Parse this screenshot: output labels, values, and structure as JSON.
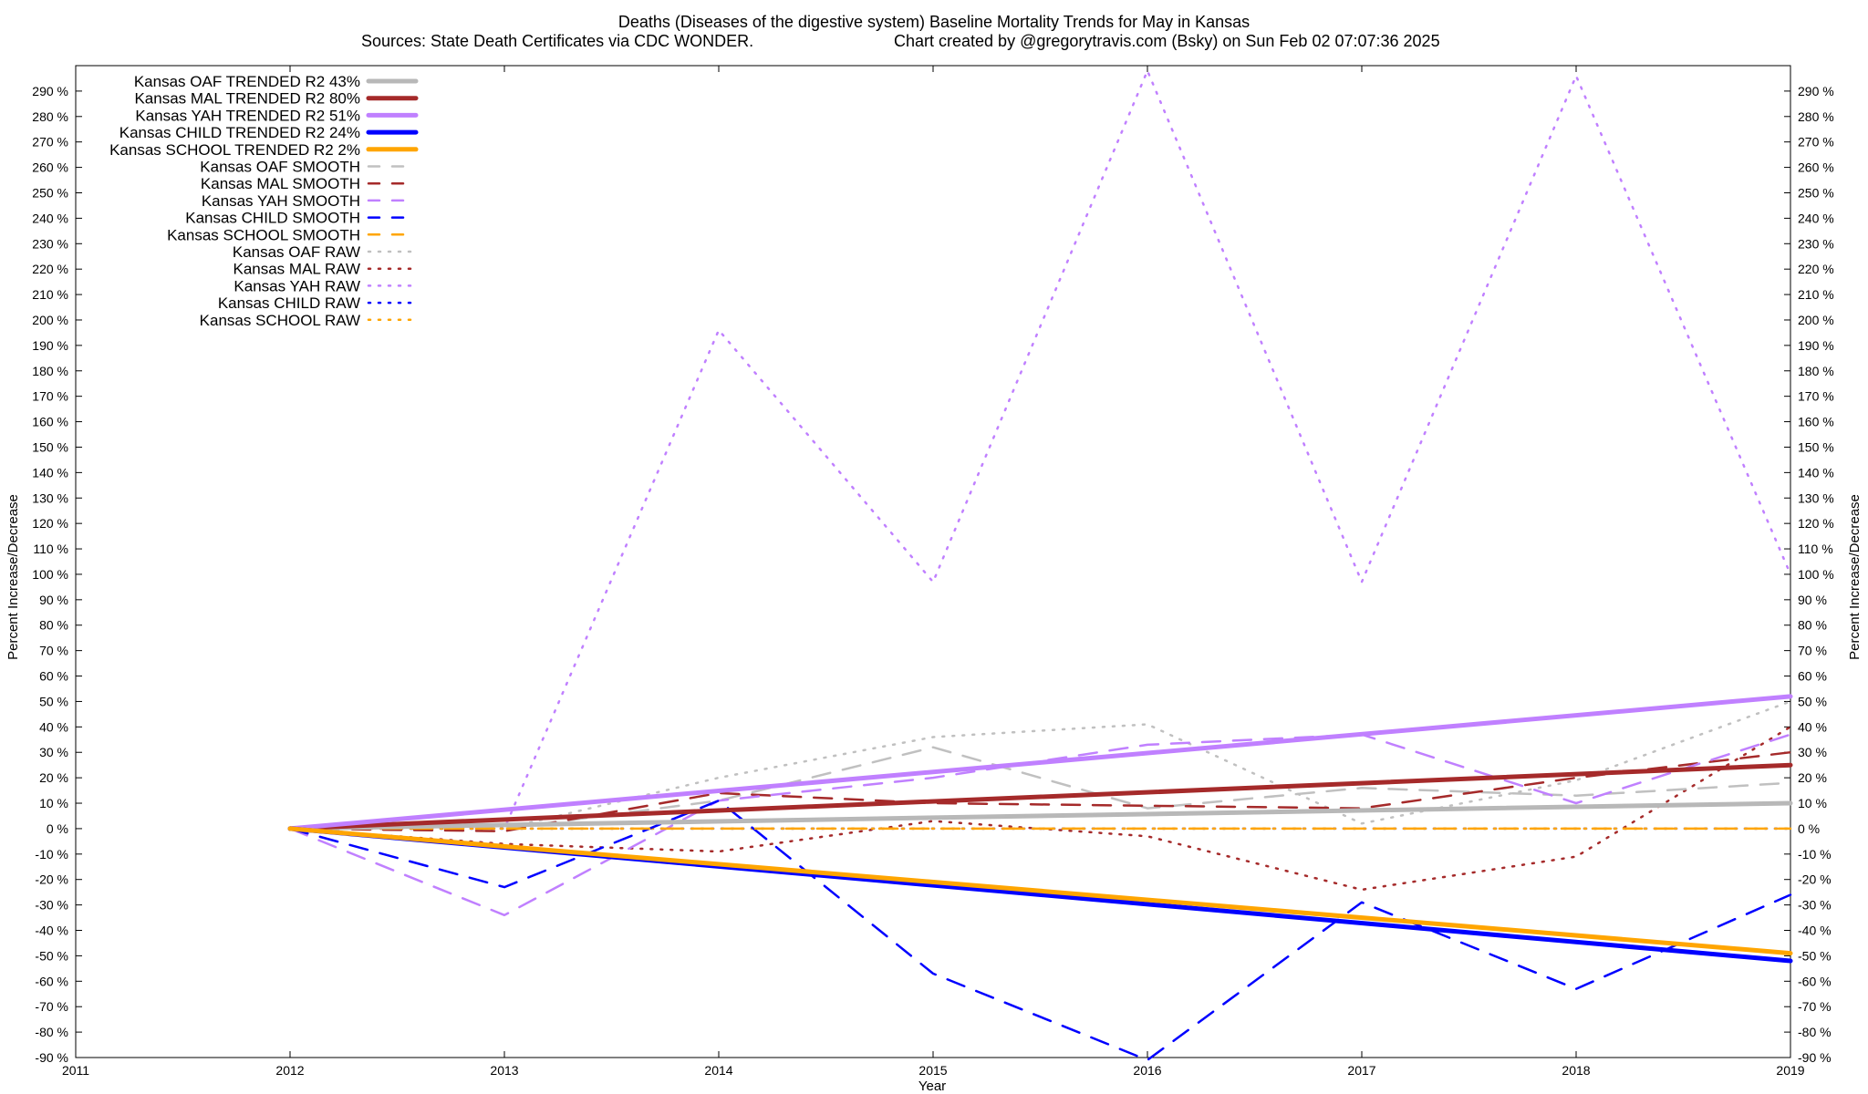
{
  "chart_data": {
    "type": "line",
    "title": "Deaths (Diseases of the digestive system)  Baseline Mortality Trends for May in Kansas",
    "subtitle_left": "Sources: State Death Certificates via CDC WONDER.",
    "subtitle_right": "Chart created by @gregorytravis.com (Bsky) on Sun Feb 02 07:07:36 2025",
    "xlabel": "Year",
    "ylabel": "Percent Increase/Decrease",
    "ylabel_right": "Percent Increase/Decrease",
    "xlim": [
      2011,
      2019
    ],
    "ylim": [
      -90,
      300
    ],
    "x_ticks": [
      2011,
      2012,
      2013,
      2014,
      2015,
      2016,
      2017,
      2018,
      2019
    ],
    "x_tick_labels": [
      "2011",
      "2012",
      "2013",
      "2014",
      "2015",
      "2016",
      "2017",
      "2018",
      "2019"
    ],
    "y_ticks": [
      -90,
      -80,
      -70,
      -60,
      -50,
      -40,
      -30,
      -20,
      -10,
      0,
      10,
      20,
      30,
      40,
      50,
      60,
      70,
      80,
      90,
      100,
      110,
      120,
      130,
      140,
      150,
      160,
      170,
      180,
      190,
      200,
      210,
      220,
      230,
      240,
      250,
      260,
      270,
      280,
      290
    ],
    "y_tick_labels": [
      "-90 %",
      "-80 %",
      "-70 %",
      "-60 %",
      "-50 %",
      "-40 %",
      "-30 %",
      "-20 %",
      "-10 %",
      "0 %",
      "10 %",
      "20 %",
      "30 %",
      "40 %",
      "50 %",
      "60 %",
      "70 %",
      "80 %",
      "90 %",
      "100 %",
      "110 %",
      "120 %",
      "130 %",
      "140 %",
      "150 %",
      "160 %",
      "170 %",
      "180 %",
      "190 %",
      "200 %",
      "210 %",
      "220 %",
      "230 %",
      "240 %",
      "250 %",
      "260 %",
      "270 %",
      "280 %",
      "290 %"
    ],
    "grid": false,
    "legend_position": "top-left",
    "series": [
      {
        "name": "Kansas OAF TRENDED R2  43%",
        "style": "trend",
        "color": "#b8b8b8",
        "x": [
          2012,
          2019
        ],
        "y": [
          0,
          10
        ]
      },
      {
        "name": "Kansas MAL TRENDED R2  80%",
        "style": "trend",
        "color": "#a52a2a",
        "x": [
          2012,
          2019
        ],
        "y": [
          0,
          25
        ]
      },
      {
        "name": "Kansas YAH TRENDED R2  51%",
        "style": "trend",
        "color": "#c080ff",
        "x": [
          2012,
          2019
        ],
        "y": [
          0,
          52
        ]
      },
      {
        "name": "Kansas CHILD TRENDED R2  24%",
        "style": "trend",
        "color": "#0000ff",
        "x": [
          2012,
          2019
        ],
        "y": [
          0,
          -52
        ]
      },
      {
        "name": "Kansas SCHOOL TRENDED R2   2%",
        "style": "trend",
        "color": "#ffa500",
        "x": [
          2012,
          2019
        ],
        "y": [
          0,
          -49
        ]
      },
      {
        "name": "Kansas OAF SMOOTH",
        "style": "smooth",
        "color": "#c0c0c0",
        "x": [
          2012,
          2013,
          2014,
          2015,
          2016,
          2017,
          2018,
          2019
        ],
        "y": [
          0,
          0,
          11,
          32,
          8,
          16,
          13,
          18
        ]
      },
      {
        "name": "Kansas MAL SMOOTH",
        "style": "smooth",
        "color": "#a52a2a",
        "x": [
          2012,
          2013,
          2014,
          2015,
          2016,
          2017,
          2018,
          2019
        ],
        "y": [
          0,
          -1,
          14,
          10,
          9,
          8,
          20,
          30
        ]
      },
      {
        "name": "Kansas YAH SMOOTH",
        "style": "smooth",
        "color": "#c080ff",
        "x": [
          2012,
          2013,
          2014,
          2015,
          2016,
          2017,
          2018,
          2019
        ],
        "y": [
          0,
          -34,
          11,
          20,
          33,
          37,
          10,
          37
        ]
      },
      {
        "name": "Kansas CHILD SMOOTH",
        "style": "smooth",
        "color": "#0000ff",
        "x": [
          2012,
          2013,
          2014,
          2015,
          2016,
          2017,
          2018,
          2019
        ],
        "y": [
          0,
          -23,
          11,
          -57,
          -91,
          -29,
          -63,
          -26
        ]
      },
      {
        "name": "Kansas SCHOOL SMOOTH",
        "style": "smooth",
        "color": "#ffa500",
        "x": [
          2012,
          2013,
          2014,
          2015,
          2016,
          2017,
          2018,
          2019
        ],
        "y": [
          0,
          0,
          0,
          0,
          0,
          0,
          0,
          0
        ]
      },
      {
        "name": "Kansas OAF RAW",
        "style": "raw",
        "color": "#c0c0c0",
        "x": [
          2012,
          2013,
          2014,
          2015,
          2016,
          2017,
          2018,
          2019
        ],
        "y": [
          0,
          0,
          20,
          36,
          41,
          2,
          19,
          50
        ]
      },
      {
        "name": "Kansas MAL RAW",
        "style": "raw",
        "color": "#a52a2a",
        "x": [
          2012,
          2013,
          2014,
          2015,
          2016,
          2017,
          2018,
          2019
        ],
        "y": [
          0,
          -6,
          -9,
          3,
          -3,
          -24,
          -11,
          40
        ]
      },
      {
        "name": "Kansas YAH RAW",
        "style": "raw",
        "color": "#c080ff",
        "x": [
          2012,
          2013,
          2014,
          2015,
          2016,
          2017,
          2018,
          2019
        ],
        "y": [
          0,
          0,
          196,
          97,
          298,
          97,
          296,
          100
        ]
      },
      {
        "name": "Kansas CHILD RAW",
        "style": "raw",
        "color": "#0000ff",
        "x": [
          2012,
          2013,
          2014,
          2015,
          2016,
          2017,
          2018,
          2019
        ],
        "y": [
          0,
          0,
          0,
          0,
          0,
          0,
          0,
          0
        ]
      },
      {
        "name": "Kansas SCHOOL RAW",
        "style": "raw",
        "color": "#ffa500",
        "x": [
          2012,
          2013,
          2014,
          2015,
          2016,
          2017,
          2018,
          2019
        ],
        "y": [
          0,
          0,
          0,
          0,
          0,
          0,
          0,
          0
        ]
      }
    ]
  }
}
